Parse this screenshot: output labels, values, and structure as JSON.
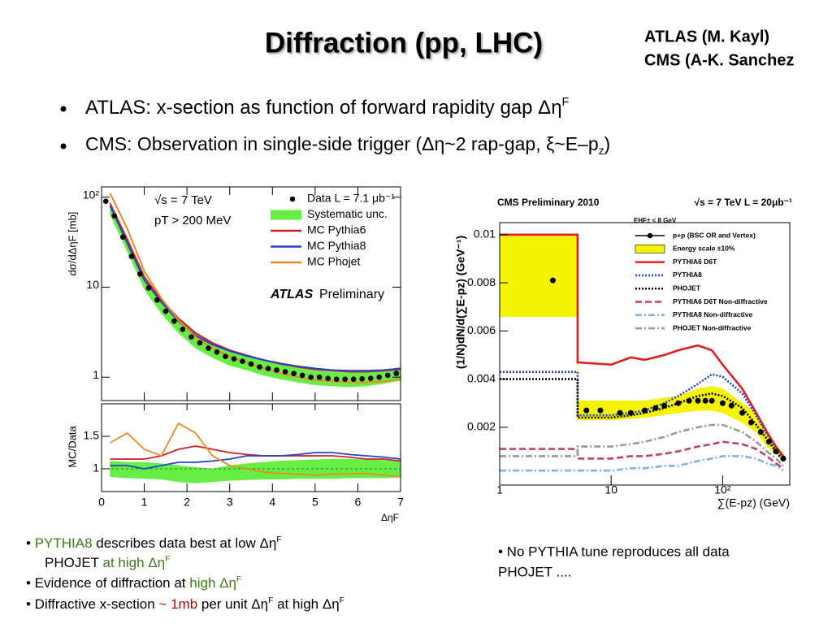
{
  "slide": {
    "title": "Diffraction (pp, LHC)",
    "credits": [
      "ATLAS (M. Kayl)",
      "CMS (A-K. Sanchez"
    ],
    "bullets": [
      [
        {
          "text": "ATLAS: x-section as function of forward rapidity gap Δη"
        },
        {
          "text": "F",
          "style": "sup"
        }
      ],
      [
        {
          "text": "CMS: Observation in single-side trigger (Δη~2 rap-gap, ξ~E–p"
        },
        {
          "text": "z",
          "style": "sub"
        },
        {
          "text": ")"
        }
      ]
    ],
    "notes_left": [
      [
        {
          "text": "• "
        },
        {
          "text": "PYTHIA8",
          "color": "#3d7a1c"
        },
        {
          "text": " describes data best at low Δη"
        },
        {
          "text": "F",
          "style": "sup"
        }
      ],
      [
        {
          "text": "PHOJET"
        },
        {
          "text": " at high Δη",
          "color": "#3d7a1c"
        },
        {
          "text": "F",
          "style": "sup",
          "color": "#3d7a1c"
        }
      ],
      [
        {
          "text": "• Evidence of diffraction at "
        },
        {
          "text": "high Δη",
          "color": "#3d7a1c"
        },
        {
          "text": "F",
          "style": "sup",
          "color": "#3d7a1c"
        }
      ],
      [
        {
          "text": "• Diffractive x-section "
        },
        {
          "text": "~ 1mb",
          "color": "#c00000"
        },
        {
          "text": " per unit Δη"
        },
        {
          "text": "F",
          "style": "sup"
        },
        {
          "text": " at high Δη"
        },
        {
          "text": "F",
          "style": "sup"
        }
      ]
    ],
    "notes_right": [
      "• No PYTHIA tune reproduces all data",
      "PHOJET ...."
    ]
  },
  "chart_data": [
    {
      "type": "line",
      "ylog": true,
      "xlabel": "ΔηF",
      "ylabel": "dσ/dΔηF [mb]",
      "xlim": [
        0,
        7
      ],
      "ylim": [
        0.55,
        130
      ],
      "xticks": [
        0,
        1,
        2,
        3,
        4,
        5,
        6,
        7
      ],
      "yticks": [
        1,
        10,
        {
          "value": 100,
          "label": "10²"
        }
      ],
      "annotations": [
        "√s = 7 TeV",
        "pT > 200 MeV"
      ],
      "brand": "ATLAS",
      "brand_note": "Preliminary",
      "ratio_ylabel": "MC/Data",
      "ratio_ylim": [
        0.65,
        2.0
      ],
      "ratio_yticks": [
        1,
        1.5
      ],
      "series": [
        {
          "name": "Data L = 7.1 μb⁻¹",
          "color": "#000000",
          "style": "points",
          "x": [
            0.1,
            0.3,
            0.5,
            0.7,
            0.9,
            1.1,
            1.3,
            1.5,
            1.7,
            1.9,
            2.1,
            2.3,
            2.5,
            2.7,
            2.9,
            3.1,
            3.3,
            3.5,
            3.7,
            3.9,
            4.1,
            4.3,
            4.5,
            4.7,
            4.9,
            5.1,
            5.3,
            5.5,
            5.7,
            5.9,
            6.1,
            6.3,
            6.5,
            6.7,
            6.9
          ],
          "values": [
            90,
            62,
            36,
            22,
            14,
            9.8,
            7.2,
            5.4,
            4.2,
            3.4,
            2.8,
            2.4,
            2.1,
            1.9,
            1.7,
            1.6,
            1.5,
            1.4,
            1.3,
            1.25,
            1.2,
            1.15,
            1.1,
            1.05,
            1.0,
            1.0,
            0.97,
            0.95,
            0.95,
            0.95,
            0.96,
            0.97,
            1.0,
            1.05,
            1.1
          ]
        },
        {
          "name": "Systematic unc.",
          "color": "#66ee44",
          "style": "band",
          "x": [
            0.2,
            0.6,
            1.0,
            1.4,
            1.8,
            2.2,
            2.6,
            3.0,
            3.4,
            3.8,
            4.2,
            4.6,
            5.0,
            5.4,
            5.8,
            6.2,
            6.6,
            7.0
          ],
          "low": [
            64,
            25,
            9.5,
            5.1,
            3.1,
            2.1,
            1.65,
            1.35,
            1.2,
            1.05,
            0.95,
            0.88,
            0.82,
            0.8,
            0.78,
            0.8,
            0.85,
            0.92
          ],
          "high": [
            88,
            36,
            13.5,
            7.3,
            4.5,
            3.1,
            2.4,
            1.95,
            1.7,
            1.55,
            1.4,
            1.28,
            1.18,
            1.14,
            1.12,
            1.12,
            1.2,
            1.28
          ],
          "ratio_low": [
            0.88,
            0.86,
            0.85,
            0.84,
            0.8,
            0.78,
            0.8,
            0.82,
            0.83,
            0.84,
            0.84,
            0.85,
            0.85,
            0.85,
            0.86,
            0.86,
            0.86,
            0.87
          ],
          "ratio_high": [
            1.12,
            1.1,
            1.1,
            1.08,
            1.05,
            1.02,
            1.0,
            1.05,
            1.08,
            1.1,
            1.12,
            1.13,
            1.14,
            1.15,
            1.15,
            1.14,
            1.13,
            1.12
          ]
        },
        {
          "name": "MC Pythia6",
          "color": "#cc2222",
          "style": "line",
          "x": [
            0.2,
            0.6,
            1.0,
            1.4,
            1.8,
            2.2,
            2.6,
            3.0,
            3.4,
            3.8,
            4.2,
            4.6,
            5.0,
            5.4,
            5.8,
            6.2,
            6.6,
            7.0
          ],
          "values": [
            85,
            34,
            13,
            7.2,
            4.5,
            3.1,
            2.4,
            2.0,
            1.75,
            1.55,
            1.4,
            1.3,
            1.22,
            1.18,
            1.15,
            1.15,
            1.18,
            1.22
          ],
          "ratio": [
            1.15,
            1.15,
            1.15,
            1.2,
            1.3,
            1.35,
            1.3,
            1.25,
            1.22,
            1.2,
            1.2,
            1.2,
            1.2,
            1.2,
            1.18,
            1.15,
            1.15,
            1.12
          ]
        },
        {
          "name": "MC Pythia8",
          "color": "#2244cc",
          "style": "line",
          "x": [
            0.2,
            0.6,
            1.0,
            1.4,
            1.8,
            2.2,
            2.6,
            3.0,
            3.4,
            3.8,
            4.2,
            4.6,
            5.0,
            5.4,
            5.8,
            6.2,
            6.6,
            7.0
          ],
          "values": [
            80,
            31,
            12,
            6.8,
            4.2,
            2.9,
            2.3,
            1.95,
            1.72,
            1.55,
            1.42,
            1.32,
            1.25,
            1.2,
            1.18,
            1.18,
            1.2,
            1.25
          ],
          "ratio": [
            1.05,
            1.05,
            1.0,
            1.05,
            1.1,
            1.1,
            1.12,
            1.15,
            1.2,
            1.2,
            1.2,
            1.22,
            1.25,
            1.25,
            1.22,
            1.2,
            1.18,
            1.15
          ]
        },
        {
          "name": "MC Phojet",
          "color": "#ee8822",
          "style": "line",
          "x": [
            0.2,
            0.6,
            1.0,
            1.4,
            1.8,
            2.2,
            2.6,
            3.0,
            3.4,
            3.8,
            4.2,
            4.6,
            5.0,
            5.4,
            5.8,
            6.2,
            6.6,
            7.0
          ],
          "values": [
            110,
            45,
            15,
            7.5,
            4.3,
            2.8,
            2.1,
            1.7,
            1.45,
            1.25,
            1.1,
            1.0,
            0.93,
            0.9,
            0.88,
            0.88,
            0.9,
            0.95
          ],
          "ratio": [
            1.4,
            1.55,
            1.3,
            1.2,
            1.7,
            1.55,
            1.2,
            1.05,
            1.0,
            0.95,
            0.93,
            0.92,
            0.9,
            0.92,
            0.92,
            0.93,
            0.9,
            0.88
          ]
        }
      ]
    },
    {
      "type": "line",
      "xlog": true,
      "title": "CMS Preliminary 2010",
      "annotation": "√s = 7 TeV   L = 20μb⁻¹",
      "cut": "EHF± < 8 GeV",
      "xlabel": "∑(E-pz) (GeV)",
      "ylabel": "(1/N)dN/d(∑E-pz) (GeV⁻¹)",
      "xlim": [
        1,
        400
      ],
      "ylim": [
        -0.0004,
        0.0105
      ],
      "xticks": [
        1,
        10,
        {
          "value": 100,
          "label": "10²"
        }
      ],
      "yticks": [
        0.002,
        0.004,
        0.006,
        0.008,
        0.01
      ],
      "series": [
        {
          "name": "p+p (BSC OR and Vertex)",
          "color": "#000000",
          "style": "points",
          "x": [
            3,
            6,
            8,
            12,
            15,
            20,
            25,
            30,
            40,
            50,
            60,
            70,
            80,
            100,
            120,
            150,
            180,
            220,
            260,
            300,
            350
          ],
          "values": [
            0.0081,
            0.0027,
            0.0027,
            0.0026,
            0.0026,
            0.0027,
            0.0028,
            0.0029,
            0.003,
            0.0031,
            0.0031,
            0.0031,
            0.0031,
            0.003,
            0.0029,
            0.0026,
            0.0022,
            0.0018,
            0.0014,
            0.001,
            0.0007
          ]
        },
        {
          "name": "Energy scale ±10%",
          "color": "#f4f400",
          "style": "band",
          "x": [
            1,
            5,
            5,
            10,
            20,
            40,
            60,
            80,
            100,
            150,
            200,
            250,
            300,
            350
          ],
          "low": [
            0.0066,
            0.0066,
            0.0023,
            0.0023,
            0.0024,
            0.0026,
            0.0027,
            0.0027,
            0.0026,
            0.0022,
            0.0018,
            0.0012,
            0.0009,
            0.0006
          ],
          "high": [
            0.01,
            0.01,
            0.0031,
            0.0031,
            0.0031,
            0.0033,
            0.0036,
            0.0037,
            0.0036,
            0.003,
            0.0026,
            0.0018,
            0.0013,
            0.0009
          ]
        },
        {
          "name": "PYTHIA6 D6T",
          "color": "#e02020",
          "style": "line",
          "dash": "solid",
          "x": [
            1,
            5,
            5,
            10,
            15,
            20,
            30,
            40,
            60,
            80,
            100,
            150,
            200,
            250,
            300,
            350
          ],
          "values": [
            0.01,
            0.01,
            0.0047,
            0.0046,
            0.0049,
            0.0048,
            0.005,
            0.0052,
            0.0054,
            0.0052,
            0.0046,
            0.0036,
            0.0026,
            0.0018,
            0.0012,
            0.0008
          ]
        },
        {
          "name": "PYTHIA8",
          "color": "#2040d0",
          "style": "line",
          "dash": "dotted",
          "x": [
            1,
            5,
            5,
            10,
            15,
            20,
            30,
            40,
            60,
            80,
            100,
            150,
            200,
            250,
            300,
            350
          ],
          "values": [
            0.0043,
            0.0043,
            0.0025,
            0.0025,
            0.0026,
            0.0027,
            0.003,
            0.0033,
            0.0038,
            0.0042,
            0.0041,
            0.0034,
            0.0025,
            0.0017,
            0.0011,
            0.0007
          ]
        },
        {
          "name": "PHOJET",
          "color": "#000000",
          "style": "line",
          "dash": "dotted",
          "x": [
            1,
            5,
            5,
            10,
            15,
            20,
            30,
            40,
            60,
            80,
            100,
            150,
            200,
            250,
            300,
            350
          ],
          "values": [
            0.004,
            0.004,
            0.0024,
            0.0024,
            0.0025,
            0.0026,
            0.0028,
            0.003,
            0.0033,
            0.0034,
            0.0033,
            0.0028,
            0.0021,
            0.0015,
            0.001,
            0.0006
          ]
        },
        {
          "name": "PYTHIA6 D6T Non-diffractive",
          "color": "#c04070",
          "style": "line",
          "dash": "dashed",
          "x": [
            1,
            5,
            5,
            10,
            15,
            20,
            30,
            40,
            60,
            80,
            100,
            150,
            200,
            250,
            300,
            350
          ],
          "values": [
            0.0011,
            0.0011,
            0.0007,
            0.0007,
            0.0008,
            0.0008,
            0.0009,
            0.001,
            0.0012,
            0.0013,
            0.0014,
            0.0013,
            0.0011,
            0.0008,
            0.0005,
            0.0003
          ]
        },
        {
          "name": "PYTHIA8 Non-diffractive",
          "color": "#80b0e8",
          "style": "line",
          "dash": "dashdot",
          "x": [
            1,
            5,
            5,
            10,
            15,
            20,
            30,
            40,
            60,
            80,
            100,
            150,
            200,
            250,
            300,
            350
          ],
          "values": [
            0.0002,
            0.0002,
            0.0002,
            0.0002,
            0.0003,
            0.0003,
            0.0004,
            0.0004,
            0.0006,
            0.0007,
            0.0008,
            0.0008,
            0.0007,
            0.0005,
            0.0004,
            0.0002
          ]
        },
        {
          "name": "PHOJET Non-diffractive",
          "color": "#999999",
          "style": "line",
          "dash": "dashdot",
          "x": [
            1,
            5,
            5,
            10,
            15,
            20,
            30,
            40,
            60,
            80,
            100,
            150,
            200,
            250,
            300,
            350
          ],
          "values": [
            0.0008,
            0.0008,
            0.0012,
            0.0012,
            0.0013,
            0.0014,
            0.0016,
            0.0018,
            0.002,
            0.0021,
            0.0021,
            0.0018,
            0.0014,
            0.001,
            0.0007,
            0.0004
          ]
        }
      ]
    }
  ]
}
